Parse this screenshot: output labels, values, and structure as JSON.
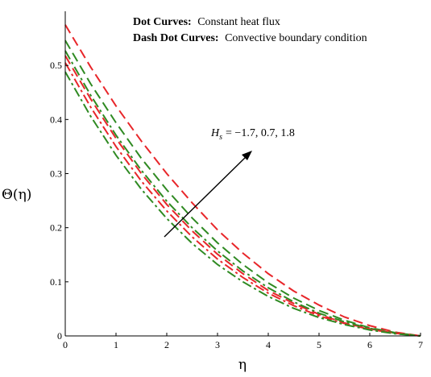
{
  "chart_data": {
    "type": "line",
    "title": "",
    "xlabel": "η",
    "ylabel": "Θ(η)",
    "xlim": [
      0,
      7
    ],
    "ylim": [
      0,
      0.6
    ],
    "xticks": [
      "0",
      "1",
      "2",
      "3",
      "4",
      "5",
      "6",
      "7"
    ],
    "yticks": [
      "0",
      "0.1",
      "0.2",
      "0.3",
      "0.4",
      "0.5"
    ],
    "grid": false,
    "legend": {
      "placement": "top",
      "entries": [
        {
          "bold": "Dot Curves:",
          "text": "Constant heat flux"
        },
        {
          "bold": "Dash Dot Curves:",
          "text": "Convective boundary condition"
        }
      ]
    },
    "annotation": {
      "symbol": "H",
      "subscript": "s",
      "text": "= −1.7, 0.7, 1.8"
    },
    "colors": {
      "red": "#e8262a",
      "green": "#2f8a22"
    },
    "x": [
      0,
      0.5,
      1,
      1.5,
      2,
      2.5,
      3,
      3.5,
      4,
      4.5,
      5,
      5.5,
      6,
      6.5,
      7
    ],
    "series": [
      {
        "style": "dash",
        "color": "#e8262a",
        "values": [
          0.575,
          0.497,
          0.425,
          0.36,
          0.3,
          0.246,
          0.196,
          0.153,
          0.115,
          0.083,
          0.057,
          0.035,
          0.019,
          0.007,
          0.0
        ]
      },
      {
        "style": "dash",
        "color": "#2f8a22",
        "values": [
          0.546,
          0.466,
          0.394,
          0.328,
          0.27,
          0.218,
          0.172,
          0.132,
          0.098,
          0.07,
          0.047,
          0.029,
          0.015,
          0.006,
          0.0
        ]
      },
      {
        "style": "dash",
        "color": "#e8262a",
        "values": [
          0.518,
          0.438,
          0.365,
          0.3,
          0.243,
          0.194,
          0.151,
          0.115,
          0.084,
          0.06,
          0.04,
          0.024,
          0.013,
          0.005,
          0.0
        ]
      },
      {
        "style": "dashdot",
        "color": "#2f8a22",
        "values": [
          0.527,
          0.445,
          0.371,
          0.306,
          0.249,
          0.2,
          0.157,
          0.12,
          0.089,
          0.063,
          0.042,
          0.026,
          0.014,
          0.005,
          0.0
        ]
      },
      {
        "style": "dashdot",
        "color": "#e8262a",
        "values": [
          0.505,
          0.423,
          0.35,
          0.286,
          0.231,
          0.183,
          0.142,
          0.108,
          0.079,
          0.056,
          0.037,
          0.023,
          0.012,
          0.005,
          0.0
        ]
      },
      {
        "style": "dashdot",
        "color": "#2f8a22",
        "values": [
          0.488,
          0.406,
          0.334,
          0.271,
          0.217,
          0.171,
          0.132,
          0.1,
          0.073,
          0.051,
          0.034,
          0.021,
          0.011,
          0.004,
          0.0
        ]
      }
    ]
  }
}
